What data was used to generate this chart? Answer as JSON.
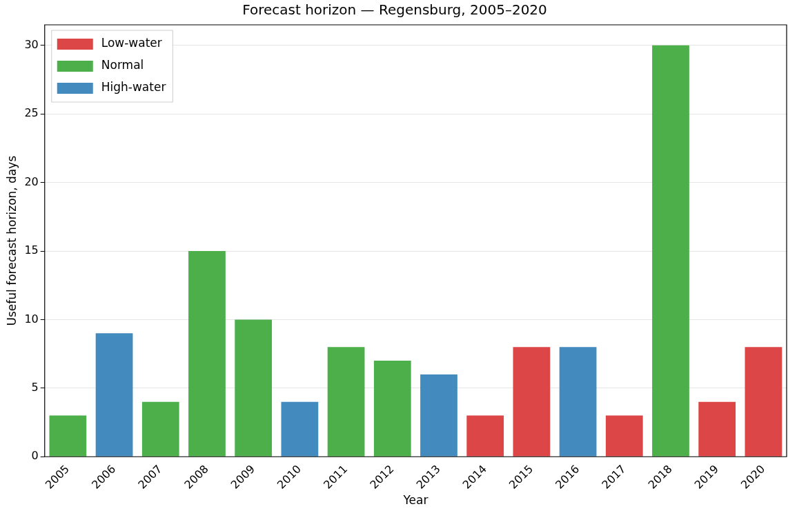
{
  "chart_data": {
    "type": "bar",
    "title": "Forecast horizon — Regensburg, 2005–2020",
    "xlabel": "Year",
    "ylabel": "Useful forecast horizon, days",
    "categories": [
      "2005",
      "2006",
      "2007",
      "2008",
      "2009",
      "2010",
      "2011",
      "2012",
      "2013",
      "2014",
      "2015",
      "2016",
      "2017",
      "2018",
      "2019",
      "2020"
    ],
    "series": [
      {
        "name": "Low-water",
        "color": "#dc4647",
        "values": [
          null,
          null,
          null,
          null,
          null,
          null,
          null,
          null,
          null,
          3,
          8,
          null,
          3,
          null,
          4,
          8
        ]
      },
      {
        "name": "Normal",
        "color": "#4daf4a",
        "values": [
          3,
          null,
          4,
          15,
          10,
          null,
          8,
          7,
          null,
          null,
          null,
          null,
          null,
          30,
          null,
          null
        ]
      },
      {
        "name": "High-water",
        "color": "#438bbf",
        "values": [
          null,
          9,
          null,
          null,
          null,
          4,
          null,
          null,
          6,
          null,
          null,
          8,
          null,
          null,
          null,
          null
        ]
      }
    ],
    "ylim": [
      0,
      31.5
    ],
    "yticks": [
      0,
      5,
      10,
      15,
      20,
      25,
      30
    ],
    "grid": "y",
    "legend": "top left"
  }
}
